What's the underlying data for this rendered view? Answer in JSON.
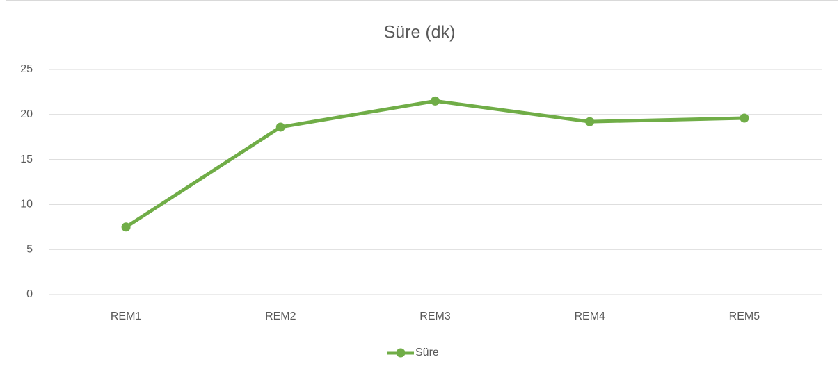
{
  "chart_data": {
    "type": "line",
    "title": "Süre (dk)",
    "categories": [
      "REM1",
      "REM2",
      "REM3",
      "REM4",
      "REM5"
    ],
    "series": [
      {
        "name": "Süre",
        "color": "#70ad47",
        "values": [
          7.5,
          18.6,
          21.5,
          19.2,
          19.6
        ]
      }
    ],
    "ylim": [
      0,
      25
    ],
    "yticks": [
      0,
      5,
      10,
      15,
      20,
      25
    ],
    "grid": true,
    "legend": "bottom"
  }
}
